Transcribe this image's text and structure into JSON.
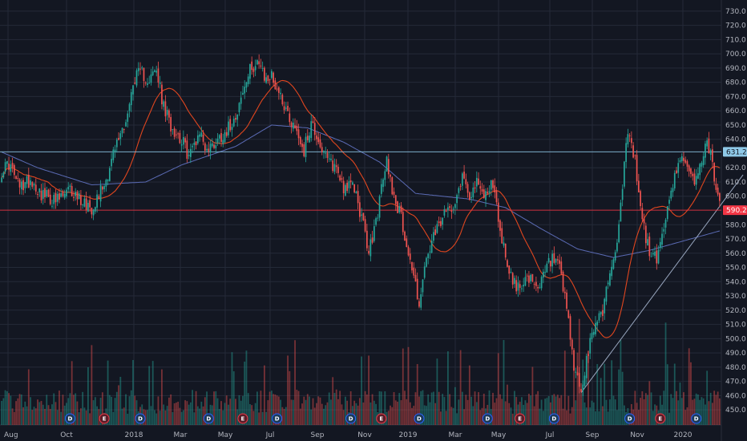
{
  "chart_data": {
    "type": "candlestick",
    "y_axis": {
      "side": "right",
      "ylim": [
        445,
        735
      ],
      "ticks": [
        "730.0",
        "720.0",
        "710.0",
        "700.0",
        "690.0",
        "680.0",
        "670.0",
        "660.0",
        "650.0",
        "640.0",
        "631.2",
        "620.0",
        "610.0",
        "600.0",
        "590.2",
        "580.0",
        "570.0",
        "560.0",
        "550.0",
        "540.0",
        "530.0",
        "520.0",
        "510.0",
        "500.0",
        "490.0",
        "480.0",
        "470.0",
        "460.0",
        "450.0"
      ]
    },
    "x_axis": {
      "labels": [
        "Aug",
        "Oct",
        "2018",
        "Mar",
        "May",
        "Jul",
        "Sep",
        "Nov",
        "2019",
        "Mar",
        "May",
        "Jul",
        "Sep",
        "Nov",
        "2020"
      ]
    },
    "price_levels": [
      {
        "value": 631.2,
        "label": "631.2",
        "color": "#8fc9e8"
      },
      {
        "value": 590.2,
        "label": "590.2",
        "color": "#f23645"
      }
    ],
    "price_anchors": [
      [
        0,
        618
      ],
      [
        4,
        623
      ],
      [
        10,
        606
      ],
      [
        16,
        612
      ],
      [
        22,
        602
      ],
      [
        30,
        596
      ],
      [
        38,
        604
      ],
      [
        46,
        596
      ],
      [
        50,
        592
      ],
      [
        58,
        612
      ],
      [
        62,
        630
      ],
      [
        70,
        658
      ],
      [
        74,
        684
      ],
      [
        78,
        686
      ],
      [
        82,
        682
      ],
      [
        86,
        688
      ],
      [
        90,
        662
      ],
      [
        94,
        650
      ],
      [
        100,
        640
      ],
      [
        104,
        628
      ],
      [
        110,
        646
      ],
      [
        114,
        632
      ],
      [
        120,
        640
      ],
      [
        126,
        648
      ],
      [
        130,
        658
      ],
      [
        134,
        672
      ],
      [
        138,
        688
      ],
      [
        142,
        696
      ],
      [
        146,
        682
      ],
      [
        150,
        684
      ],
      [
        156,
        668
      ],
      [
        160,
        655
      ],
      [
        164,
        646
      ],
      [
        168,
        632
      ],
      [
        172,
        652
      ],
      [
        176,
        640
      ],
      [
        180,
        626
      ],
      [
        186,
        620
      ],
      [
        190,
        607
      ],
      [
        196,
        606
      ],
      [
        200,
        585
      ],
      [
        204,
        560
      ],
      [
        208,
        582
      ],
      [
        212,
        612
      ],
      [
        214,
        625
      ],
      [
        218,
        600
      ],
      [
        222,
        585
      ],
      [
        226,
        560
      ],
      [
        230,
        538
      ],
      [
        232,
        525
      ],
      [
        236,
        555
      ],
      [
        240,
        570
      ],
      [
        244,
        582
      ],
      [
        248,
        590
      ],
      [
        252,
        598
      ],
      [
        256,
        615
      ],
      [
        260,
        602
      ],
      [
        264,
        608
      ],
      [
        268,
        600
      ],
      [
        272,
        610
      ],
      [
        274,
        600
      ],
      [
        278,
        570
      ],
      [
        282,
        548
      ],
      [
        286,
        535
      ],
      [
        290,
        542
      ],
      [
        294,
        540
      ],
      [
        298,
        532
      ],
      [
        302,
        548
      ],
      [
        306,
        556
      ],
      [
        310,
        548
      ],
      [
        314,
        520
      ],
      [
        318,
        480
      ],
      [
        322,
        462
      ],
      [
        326,
        490
      ],
      [
        330,
        512
      ],
      [
        334,
        520
      ],
      [
        338,
        548
      ],
      [
        342,
        565
      ],
      [
        344,
        598
      ],
      [
        348,
        644
      ],
      [
        352,
        625
      ],
      [
        354,
        600
      ],
      [
        358,
        570
      ],
      [
        360,
        562
      ],
      [
        364,
        555
      ],
      [
        368,
        580
      ],
      [
        372,
        600
      ],
      [
        376,
        628
      ],
      [
        380,
        620
      ],
      [
        384,
        610
      ],
      [
        388,
        620
      ],
      [
        392,
        640
      ],
      [
        394,
        628
      ],
      [
        398,
        600
      ],
      [
        400,
        590
      ]
    ],
    "ma_slow_anchors": [
      [
        0,
        631
      ],
      [
        20,
        620
      ],
      [
        50,
        608
      ],
      [
        80,
        610
      ],
      [
        100,
        622
      ],
      [
        130,
        635
      ],
      [
        150,
        650
      ],
      [
        170,
        648
      ],
      [
        190,
        638
      ],
      [
        210,
        624
      ],
      [
        230,
        602
      ],
      [
        260,
        598
      ],
      [
        280,
        592
      ],
      [
        300,
        577
      ],
      [
        320,
        563
      ],
      [
        340,
        557
      ],
      [
        360,
        562
      ],
      [
        380,
        569
      ],
      [
        400,
        576
      ]
    ],
    "trendline": [
      [
        322,
        462
      ],
      [
        412,
        615
      ]
    ],
    "events": [
      {
        "i": 38,
        "type": "D"
      },
      {
        "i": 57,
        "type": "E"
      },
      {
        "i": 77,
        "type": "D"
      },
      {
        "i": 115,
        "type": "D"
      },
      {
        "i": 134,
        "type": "E"
      },
      {
        "i": 153,
        "type": "D"
      },
      {
        "i": 194,
        "type": "D"
      },
      {
        "i": 211,
        "type": "E"
      },
      {
        "i": 232,
        "type": "D"
      },
      {
        "i": 270,
        "type": "D"
      },
      {
        "i": 288,
        "type": "E"
      },
      {
        "i": 307,
        "type": "D"
      },
      {
        "i": 349,
        "type": "D"
      },
      {
        "i": 366,
        "type": "E"
      },
      {
        "i": 386,
        "type": "D"
      }
    ],
    "total_bars": 400,
    "colors": {
      "up": "#26a69a",
      "down": "#ef5350",
      "ma_fast": "#e0461f",
      "ma_slow": "#5b6bb5",
      "trend": "#9aa8c0",
      "grid": "#242a38",
      "bg": "#131722"
    }
  }
}
